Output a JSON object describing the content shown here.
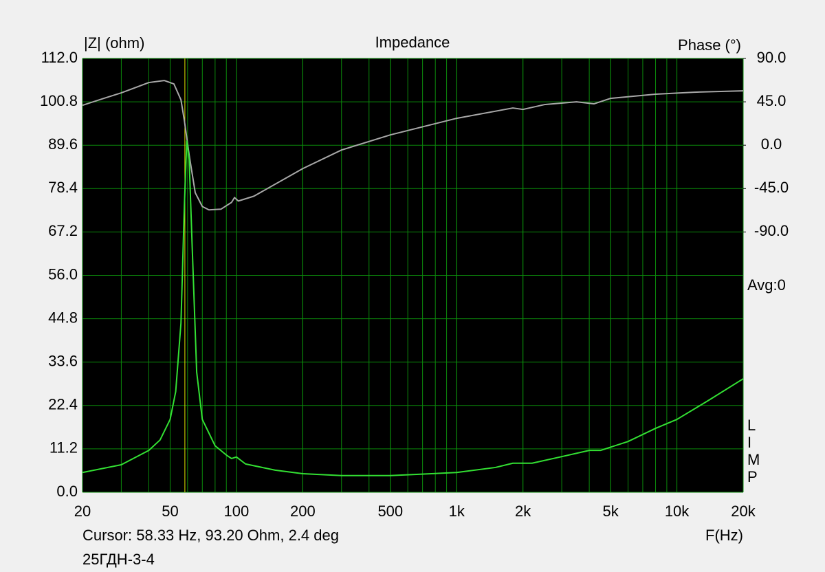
{
  "chart_data": {
    "type": "line",
    "title": "Impedance",
    "y_label": "|Z| (ohm)",
    "y2_label": "Phase (°)",
    "x_label": "F(Hz)",
    "avg_label": "Avg:0",
    "brand": [
      "L",
      "I",
      "M",
      "P"
    ],
    "cursor_text": "Cursor: 58.33 Hz, 93.20 Ohm, 2.4 deg",
    "cursor_freq": 58.33,
    "footer": "25ГДН-3-4",
    "log_x": true,
    "grid": true,
    "xlim": [
      20,
      20000
    ],
    "xticks": [
      20,
      50,
      100,
      200,
      500,
      {
        "value": 1000,
        "label": "1k"
      },
      {
        "value": 2000,
        "label": "2k"
      },
      {
        "value": 5000,
        "label": "5k"
      },
      {
        "value": 10000,
        "label": "10k"
      },
      {
        "value": 20000,
        "label": "20k"
      }
    ],
    "ylim": [
      0,
      112
    ],
    "yticks": [
      {
        "value": 0,
        "label": "0.0"
      },
      11.2,
      22.4,
      33.6,
      44.8,
      {
        "value": 56,
        "label": "56.0"
      },
      67.2,
      78.4,
      89.6,
      100.8,
      {
        "value": 112,
        "label": "112.0"
      }
    ],
    "y2lim": [
      -360,
      90
    ],
    "y2ticks": [
      {
        "value": 90,
        "label": "90.0"
      },
      {
        "value": 45,
        "label": "45.0"
      },
      {
        "value": 0,
        "label": "0.0"
      },
      {
        "value": -45,
        "label": "-45.0"
      },
      {
        "value": -90,
        "label": "-90.0"
      }
    ],
    "series": [
      {
        "name": "Impedance",
        "color": "#33e033",
        "x": [
          20,
          30,
          40,
          45,
          50,
          53,
          56,
          58,
          59.5,
          61,
          63,
          66,
          70,
          80,
          90,
          95,
          100,
          110,
          150,
          200,
          300,
          500,
          1000,
          1500,
          1800,
          2200,
          3000,
          4000,
          4500,
          6000,
          8000,
          10000,
          14000,
          20000
        ],
        "values": [
          5.1,
          7.1,
          10.8,
          13.5,
          18.8,
          26,
          43.7,
          73.8,
          90.7,
          86,
          63,
          31,
          18.8,
          12,
          9.6,
          8.7,
          9.1,
          7.3,
          5.7,
          4.8,
          4.3,
          4.3,
          5.1,
          6.4,
          7.5,
          7.5,
          9.2,
          10.8,
          10.8,
          13.1,
          16.5,
          18.8,
          23.8,
          29.3
        ]
      },
      {
        "name": "Phase",
        "color": "#a8a8a8",
        "axis": "y2",
        "x": [
          20,
          25,
          30,
          35,
          40,
          47,
          52,
          56,
          58,
          61,
          65,
          70,
          75,
          85,
          95,
          98,
          102,
          120,
          200,
          300,
          500,
          1000,
          1800,
          2000,
          2500,
          3500,
          4200,
          5000,
          8000,
          12000,
          20000
        ],
        "values": [
          41.4,
          48.6,
          54.3,
          60,
          65,
          67.1,
          63.6,
          47,
          25.7,
          -10,
          -49.3,
          -63.6,
          -67.1,
          -66.4,
          -59.3,
          -54.3,
          -57.9,
          -52.9,
          -24.3,
          -5,
          10.7,
          27.9,
          38.6,
          37.1,
          42.1,
          45,
          42.9,
          48.6,
          52.9,
          55,
          56.4
        ]
      }
    ]
  }
}
